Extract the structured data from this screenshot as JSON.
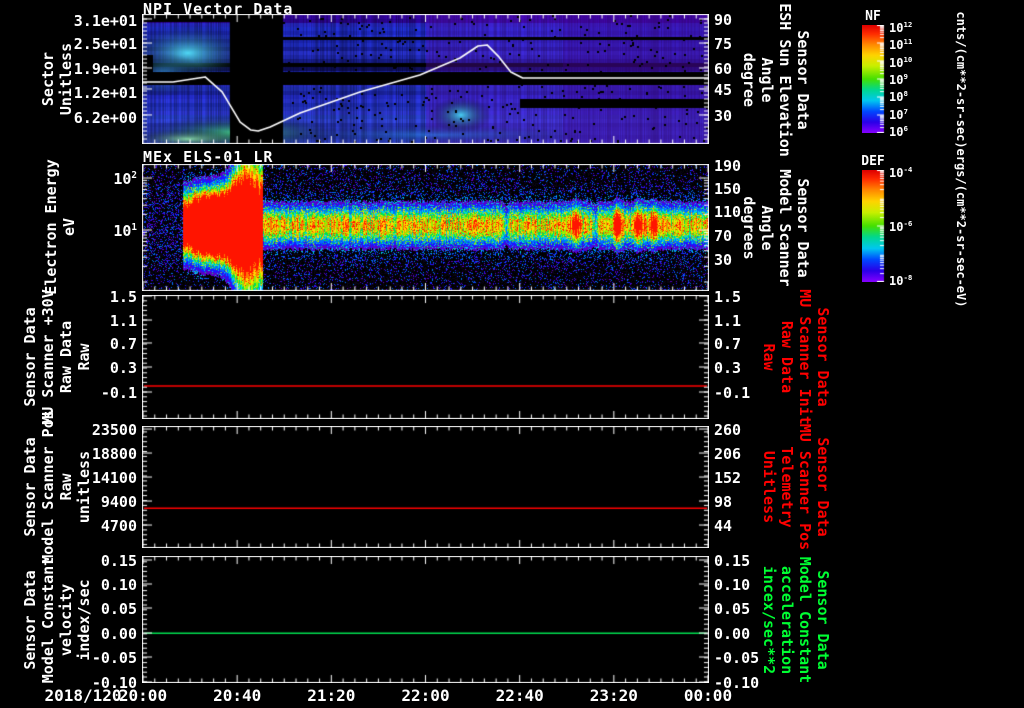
{
  "titles": {
    "panel1": "NPI Vector Data",
    "panel2": "MEx ELS-01 LR"
  },
  "x_axis": {
    "date_label": "2018/120",
    "ticks": [
      "20:00",
      "20:40",
      "21:20",
      "22:00",
      "22:40",
      "23:20",
      "00:00"
    ]
  },
  "panel1": {
    "left_label_lines": [
      "Sector",
      "Unitless"
    ],
    "left_ticks": [
      "3.1e+01",
      "2.5e+01",
      "1.9e+01",
      "1.2e+01",
      "6.2e+00"
    ],
    "right_label_lines": [
      "Sensor Data",
      "ESH Sun Elevation",
      "Angle",
      "degree"
    ],
    "right_ticks": [
      "90",
      "75",
      "60",
      "45",
      "30"
    ],
    "colorbar": {
      "title": "NF",
      "unit": "cnts/(cm**2-sr-sec)",
      "ticks": [
        "10^12",
        "10^11",
        "10^10",
        "10^9",
        "10^8",
        "10^7",
        "10^6"
      ]
    }
  },
  "panel2": {
    "left_label_lines": [
      "Electron Energy",
      "eV"
    ],
    "left_ticks": [
      "10^2",
      "10^1"
    ],
    "right_label_lines": [
      "Sensor Data",
      "Model Scanner",
      "Angle",
      "degrees"
    ],
    "right_ticks": [
      "190",
      "150",
      "110",
      "70",
      "30"
    ],
    "colorbar": {
      "title": "DEF",
      "unit": "ergs/(cm**2-sr-sec-eV)",
      "ticks": [
        "10^-4",
        "10^-6",
        "10^-8"
      ]
    }
  },
  "panel3": {
    "left_label_lines": [
      "Sensor Data",
      "MU Scanner +30V",
      "Raw Data",
      "Raw"
    ],
    "right_label_lines": [
      "Sensor Data",
      "MU Scanner Init",
      "Raw Data",
      "Raw"
    ],
    "right_label_color": "#ff0000",
    "ticks": [
      "1.5",
      "1.1",
      "0.7",
      "0.3",
      "-0.1"
    ],
    "line_color": "#ff0000"
  },
  "panel4": {
    "left_label_lines": [
      "Sensor Data",
      "Model Scanner Pos",
      "Raw",
      "unitless"
    ],
    "left_ticks": [
      "23500",
      "18800",
      "14100",
      "9400",
      "4700"
    ],
    "right_label_lines": [
      "Sensor Data",
      "MU Scanner Pos",
      "Telemetry",
      "Unitless"
    ],
    "right_label_color": "#ff0000",
    "right_ticks": [
      "260",
      "206",
      "152",
      "98",
      "44"
    ],
    "line_color": "#ff0000"
  },
  "panel5": {
    "left_label_lines": [
      "Sensor Data",
      "Model Constant",
      "velocity",
      "index/sec"
    ],
    "right_label_lines": [
      "Sensor Data",
      "Model Constant",
      "acceleration",
      "incex/sec**2"
    ],
    "right_label_color": "#00ff33",
    "ticks": [
      "0.15",
      "0.10",
      "0.05",
      "0.00",
      "-0.05",
      "-0.10"
    ],
    "line_color": "#00e050"
  },
  "chart_data": [
    {
      "type": "heatmap",
      "title": "NPI Vector Data",
      "ylabel": "Sector (Unitless)",
      "y_ticks": [
        31,
        24.8,
        18.6,
        12.4,
        6.2
      ],
      "x_start": "2018/120 20:00",
      "x_end": "2018/121 00:00",
      "x_ticks": [
        "20:00",
        "20:40",
        "21:20",
        "22:00",
        "22:40",
        "23:20",
        "00:00"
      ],
      "colorbar": {
        "name": "NF",
        "unit": "cnts/(cm**2-sr-sec)",
        "scale": "log",
        "ticks": [
          1000000000000.0,
          100000000000.0,
          10000000000.0,
          1000000000.0,
          100000000.0,
          10000000.0,
          1000000.0
        ]
      },
      "right_axis": {
        "label": "Sensor Data ESH Sun Elevation Angle (degree)",
        "ticks": [
          90,
          75,
          60,
          45,
          30
        ]
      },
      "overlay_line": {
        "name": "ESH Sun Elevation Angle (degree)",
        "points_frac_deg": [
          [
            0,
            50.6
          ],
          [
            0.053,
            50.6
          ],
          [
            0.11,
            53.8
          ],
          [
            0.14,
            44.4
          ],
          [
            0.172,
            25.6
          ],
          [
            0.191,
            20.6
          ],
          [
            0.204,
            20
          ],
          [
            0.225,
            22.5
          ],
          [
            0.278,
            31.2
          ],
          [
            0.384,
            44.4
          ],
          [
            0.49,
            55
          ],
          [
            0.561,
            65.6
          ],
          [
            0.593,
            73.1
          ],
          [
            0.609,
            73.8
          ],
          [
            0.63,
            66.3
          ],
          [
            0.651,
            56.9
          ],
          [
            0.672,
            53.1
          ],
          [
            1,
            53.1
          ]
        ]
      },
      "data_gap_frac": [
        0.154,
        0.248
      ],
      "features": [
        "bright cyan patch upper sectors 20:02-20:35",
        "cyan-green band lowest sectors 20:00-21:55",
        "full-width black band near sector 14-16",
        "black vertical telemetry gap 20:37-21:00",
        "cyan patch near 22:10 lower sectors",
        "dim violet/blue striped background elsewhere"
      ]
    },
    {
      "type": "spectrogram",
      "title": "MEx ELS-01 LR",
      "ylabel": "Electron Energy (eV)",
      "yscale": "log",
      "y_ticks": [
        100,
        10
      ],
      "colorbar": {
        "name": "DEF",
        "unit": "ergs/(cm**2-sr-sec-eV)",
        "scale": "log",
        "ticks": [
          0.0001,
          1e-06,
          1e-08
        ]
      },
      "right_axis": {
        "label": "Sensor Data Model Scanner Angle (degrees)",
        "ticks": [
          190,
          150,
          110,
          70,
          30
        ]
      },
      "features": [
        "intense red burst 20:18-20:50 spanning ~5-100 eV",
        "steady green-yellow band ~7-25 eV from 20:50 to 00:00",
        "orange vertical enhancements near 23:05-23:20",
        "sparse blue noise background"
      ]
    },
    {
      "type": "line",
      "ylabel_left": "Sensor Data MU Scanner +30V Raw Data (Raw)",
      "ylabel_right": "Sensor Data MU Scanner Init Raw Data (Raw)",
      "y_ticks": [
        1.5,
        1.1,
        0.7,
        0.3,
        -0.1
      ],
      "series": [
        {
          "name": "MU Scanner +30V Raw",
          "color": "#ff0000",
          "constant_value": 0.0
        }
      ]
    },
    {
      "type": "line",
      "ylabel_left": "Sensor Data Model Scanner Pos Raw (unitless)",
      "ylabel_right": "Sensor Data MU Scanner Pos Telemetry (Unitless)",
      "y_ticks_left": [
        23500,
        18800,
        14100,
        9400,
        4700
      ],
      "y_ticks_right": [
        260,
        206,
        152,
        98,
        44
      ],
      "series": [
        {
          "name": "Model Scanner Pos Raw",
          "color": "#ff0000",
          "constant_value": 8000
        }
      ]
    },
    {
      "type": "line",
      "ylabel_left": "Sensor Data Model Constant velocity (index/sec)",
      "ylabel_right": "Sensor Data Model Constant acceleration (incex/sec**2)",
      "y_ticks": [
        0.15,
        0.1,
        0.05,
        0.0,
        -0.05,
        -0.1
      ],
      "series": [
        {
          "name": "Model Constant velocity",
          "color": "#00e050",
          "constant_value": 0.0
        }
      ]
    }
  ]
}
